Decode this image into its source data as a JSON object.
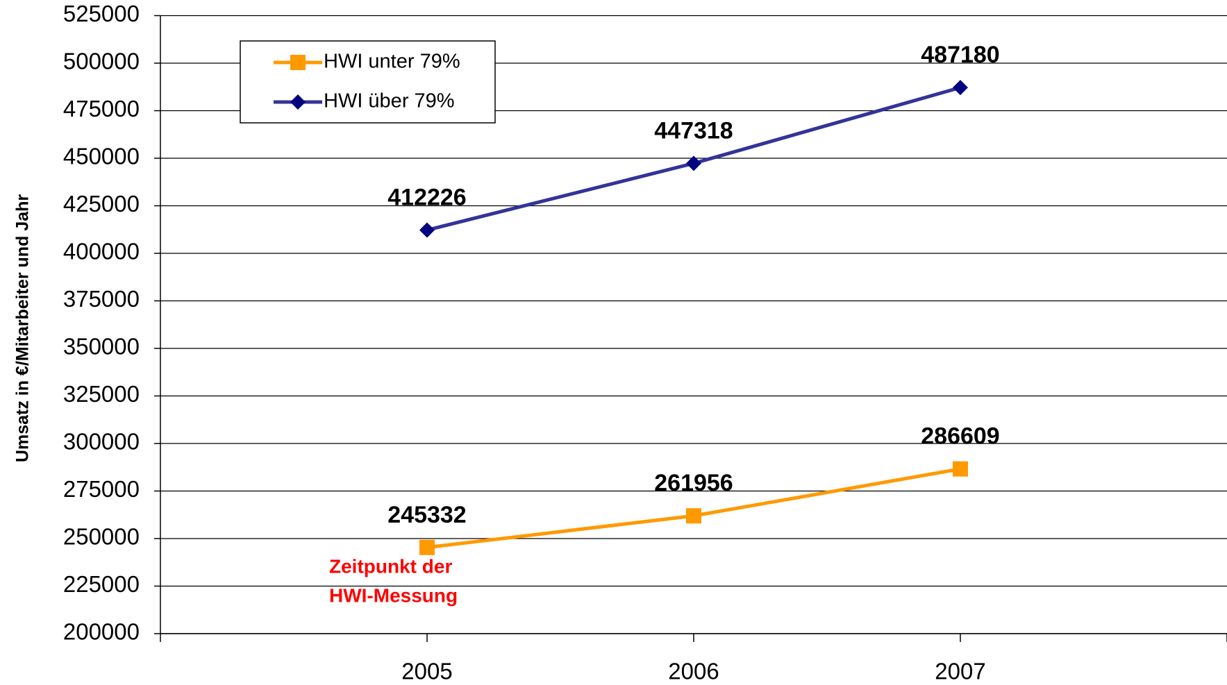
{
  "chart_data": {
    "type": "line",
    "y_label": "Umsatz in €/Mitarbeiter und Jahr",
    "categories": [
      "2005",
      "2006",
      "2007"
    ],
    "series": [
      {
        "name": "HWI unter 79%",
        "color": "#ff9900",
        "marker": "square",
        "values": [
          245332,
          261956,
          286609
        ]
      },
      {
        "name": "HWI über 79%",
        "color": "#333399",
        "marker": "diamond",
        "values": [
          412226,
          447318,
          487180
        ]
      }
    ],
    "ylim": [
      200000,
      525000
    ],
    "yticks": [
      200000,
      225000,
      250000,
      275000,
      300000,
      325000,
      350000,
      375000,
      400000,
      425000,
      450000,
      475000,
      500000,
      525000
    ],
    "grid": true,
    "legend": "upper left",
    "annotation": [
      "Zeitpunkt der",
      "HWI-Messung"
    ],
    "annotation_color": "#ff0000"
  }
}
